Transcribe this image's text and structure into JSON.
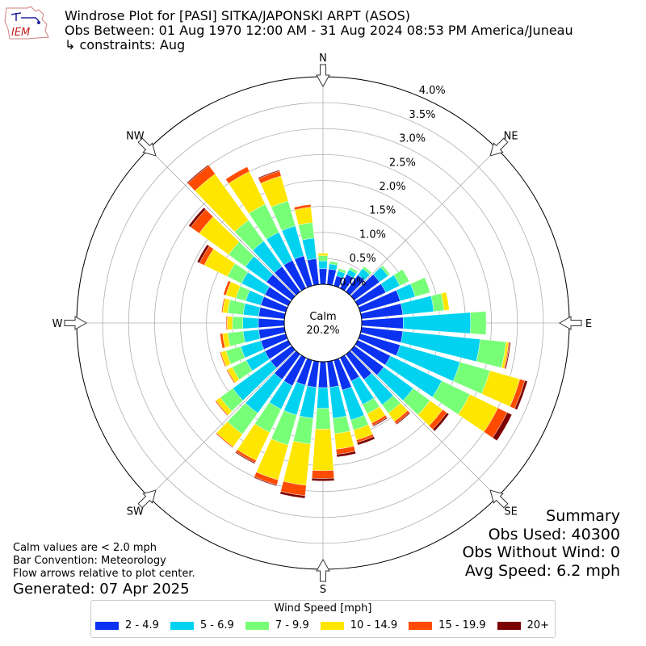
{
  "header": {
    "title": "Windrose Plot for [PASI] SITKA/JAPONSKI ARPT (ASOS)",
    "obs_between": "Obs Between: 01 Aug 1970 12:00 AM - 31 Aug 2024 08:53 PM America/Juneau",
    "constraints": "↳ constraints: Aug",
    "logo_text": "IEM"
  },
  "center": {
    "label": "Calm",
    "value": "20.2%"
  },
  "summary": {
    "title": "Summary",
    "obs_used": "Obs Used: 40300",
    "obs_without_wind": "Obs Without Wind: 0",
    "avg_speed": "Avg Speed: 6.2 mph"
  },
  "notes": {
    "calm": "Calm values are < 2.0 mph",
    "convention": "Bar Convention: Meteorology",
    "flow": "Flow arrows relative to plot center."
  },
  "generated": "Generated: 07 Apr 2025",
  "chart_data": {
    "type": "windrose",
    "radial_unit": "percent",
    "rlim": [
      0,
      4.0
    ],
    "radial_ticks": [
      "0.0%",
      "0.5%",
      "1.0%",
      "1.5%",
      "2.0%",
      "2.5%",
      "3.0%",
      "3.5%",
      "4.0%"
    ],
    "direction_labels": [
      "N",
      "NE",
      "E",
      "SE",
      "S",
      "SW",
      "W",
      "NW"
    ],
    "directions_deg": [
      0,
      10,
      20,
      30,
      40,
      50,
      60,
      70,
      80,
      90,
      100,
      110,
      120,
      130,
      140,
      150,
      160,
      170,
      180,
      190,
      200,
      210,
      220,
      230,
      240,
      250,
      260,
      270,
      280,
      290,
      300,
      310,
      320,
      330,
      340,
      350
    ],
    "legend_title": "Wind Speed [mph]",
    "series": [
      {
        "name": "2 - 4.9",
        "color": "#0a32f0",
        "values": [
          0.3,
          0.3,
          0.2,
          0.3,
          0.4,
          0.6,
          0.6,
          0.8,
          0.8,
          0.8,
          0.8,
          0.8,
          0.7,
          0.7,
          0.6,
          0.5,
          0.6,
          0.5,
          0.5,
          0.5,
          0.5,
          0.6,
          0.6,
          0.5,
          0.5,
          0.5,
          0.5,
          0.5,
          0.5,
          0.5,
          0.5,
          0.6,
          0.6,
          0.6,
          0.6,
          0.5
        ]
      },
      {
        "name": "5 - 6.9",
        "color": "#00d2f0",
        "values": [
          0.15,
          0.1,
          0.1,
          0.1,
          0.15,
          0.2,
          0.3,
          0.3,
          0.6,
          1.3,
          1.5,
          1.2,
          1.1,
          0.7,
          0.6,
          0.5,
          0.6,
          0.6,
          0.4,
          0.6,
          0.6,
          0.5,
          0.8,
          0.9,
          0.4,
          0.4,
          0.3,
          0.3,
          0.3,
          0.3,
          0.5,
          0.5,
          0.6,
          0.6,
          0.6,
          0.4
        ]
      },
      {
        "name": "7 - 9.9",
        "color": "#78ff78",
        "values": [
          0.1,
          0.05,
          0.05,
          0.05,
          0.05,
          0.05,
          0.2,
          0.3,
          0.2,
          0.3,
          0.5,
          0.6,
          0.6,
          0.4,
          0.2,
          0.2,
          0.2,
          0.3,
          0.4,
          0.5,
          0.6,
          0.5,
          0.5,
          0.3,
          0.3,
          0.3,
          0.3,
          0.2,
          0.3,
          0.2,
          0.3,
          0.4,
          0.5,
          0.6,
          0.5,
          0.3
        ]
      },
      {
        "name": "10 - 14.9",
        "color": "#ffe600",
        "values": [
          0.05,
          0.0,
          0.0,
          0.0,
          0.0,
          0.0,
          0.0,
          0.0,
          0.1,
          0.0,
          0.05,
          0.6,
          0.6,
          0.3,
          0.2,
          0.2,
          0.2,
          0.3,
          0.8,
          0.8,
          0.7,
          0.6,
          0.3,
          0.1,
          0.1,
          0.1,
          0.1,
          0.1,
          0.1,
          0.2,
          0.5,
          0.7,
          1.1,
          0.7,
          0.5,
          0.3
        ]
      },
      {
        "name": "15 - 19.9",
        "color": "#ff4b00",
        "values": [
          0.0,
          0.0,
          0.0,
          0.0,
          0.0,
          0.0,
          0.0,
          0.0,
          0.0,
          0.0,
          0.02,
          0.1,
          0.2,
          0.1,
          0.05,
          0.05,
          0.05,
          0.1,
          0.15,
          0.2,
          0.1,
          0.05,
          0.02,
          0.02,
          0.02,
          0.02,
          0.05,
          0.02,
          0.02,
          0.05,
          0.1,
          0.2,
          0.2,
          0.1,
          0.1,
          0.05
        ]
      },
      {
        "name": "20+",
        "color": "#7d0000",
        "values": [
          0.0,
          0.0,
          0.0,
          0.0,
          0.0,
          0.0,
          0.0,
          0.0,
          0.0,
          0.0,
          0.02,
          0.05,
          0.1,
          0.05,
          0.02,
          0.02,
          0.05,
          0.05,
          0.05,
          0.05,
          0.02,
          0.02,
          0.0,
          0.0,
          0.0,
          0.0,
          0.0,
          0.0,
          0.0,
          0.0,
          0.05,
          0.05,
          0.02,
          0.0,
          0.02,
          0.0
        ]
      }
    ]
  }
}
